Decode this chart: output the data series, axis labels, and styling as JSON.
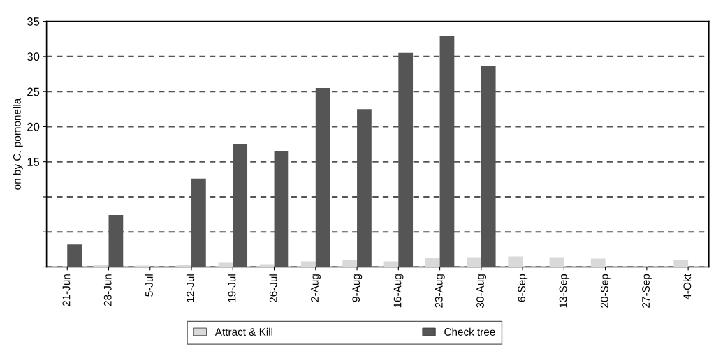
{
  "chart_data": {
    "type": "bar",
    "ylabel": "on by C. pomonella",
    "categories": [
      "21-Jun",
      "28-Jun",
      "5-Jul",
      "12-Jul",
      "19-Jul",
      "26-Jul",
      "2-Aug",
      "9-Aug",
      "16-Aug",
      "23-Aug",
      "30-Aug",
      "6-Sep",
      "13-Sep",
      "20-Sep",
      "27-Sep",
      "4-Okt"
    ],
    "series": [
      {
        "name": "Attract & Kill",
        "color": "#d9d9d9",
        "values": [
          0,
          0.3,
          0.2,
          0.3,
          0.6,
          0.4,
          0.8,
          1.0,
          0.8,
          1.3,
          1.4,
          1.5,
          1.4,
          1.2,
          null,
          1.0
        ]
      },
      {
        "name": "Check tree",
        "color": "#555555",
        "values": [
          3.2,
          7.4,
          0,
          12.6,
          17.5,
          16.5,
          25.5,
          22.5,
          30.5,
          32.9,
          28.7,
          0,
          0,
          0,
          0,
          0
        ]
      }
    ],
    "ylim": [
      0,
      35
    ],
    "yticks": [
      {
        "value": 0,
        "label": null
      },
      {
        "value": 5,
        "label": null
      },
      {
        "value": 10,
        "label": null
      },
      15,
      20,
      25,
      30,
      35
    ],
    "grid": "y",
    "legend": "bottom"
  }
}
